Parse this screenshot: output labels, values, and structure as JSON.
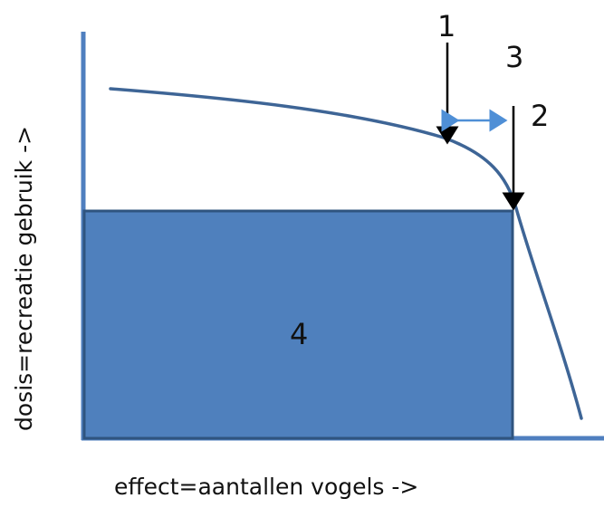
{
  "diagram": {
    "labels": {
      "l1": "1",
      "l2": "2",
      "l3": "3",
      "l4": "4"
    },
    "x_axis_label": "effect=aantallen vogels ->",
    "y_axis_label": "dosis=recreatie gebruik ->"
  },
  "colors": {
    "axis": "#4f7fbf",
    "curve": "#3e6596",
    "box_fill": "#4f80bd",
    "box_stroke": "#2f547f",
    "arrow": "#000000",
    "double_arrow": "#4f8fd6"
  }
}
